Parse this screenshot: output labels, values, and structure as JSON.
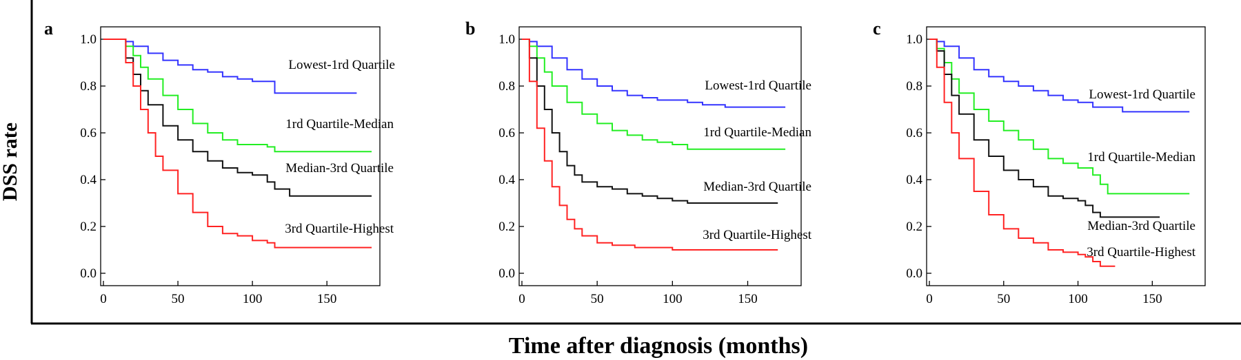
{
  "figure": {
    "ylabel": "DSS rate",
    "xlabel": "Time after diagnosis (months)"
  },
  "colors": {
    "Lowest-1rd Quartile": "#3333ff",
    "1rd Quartile-Median": "#22ee22",
    "Median-3rd Quartile": "#111111",
    "3rd Quartile-Highest": "#ff2222"
  },
  "chart_data": [
    {
      "type": "line",
      "panel": "a",
      "xlim": [
        0,
        180
      ],
      "ylim": [
        0,
        1.0
      ],
      "xticks": [
        "0",
        "50",
        "100",
        "150"
      ],
      "yticks": [
        "0.0",
        "0.2",
        "0.4",
        "0.6",
        "0.8",
        "1.0"
      ],
      "series": [
        {
          "name": "Lowest-1rd Quartile",
          "x": [
            0,
            10,
            15,
            20,
            30,
            40,
            50,
            60,
            70,
            80,
            90,
            100,
            110,
            115,
            120,
            170
          ],
          "y": [
            1.0,
            1.0,
            0.99,
            0.97,
            0.94,
            0.91,
            0.89,
            0.87,
            0.86,
            0.84,
            0.83,
            0.82,
            0.82,
            0.77,
            0.77,
            0.77
          ]
        },
        {
          "name": "1rd Quartile-Median",
          "x": [
            0,
            10,
            15,
            20,
            25,
            30,
            40,
            50,
            60,
            70,
            80,
            90,
            100,
            110,
            115,
            120,
            180
          ],
          "y": [
            1.0,
            1.0,
            0.97,
            0.93,
            0.88,
            0.83,
            0.76,
            0.7,
            0.64,
            0.6,
            0.57,
            0.55,
            0.55,
            0.54,
            0.52,
            0.52,
            0.52
          ]
        },
        {
          "name": "Median-3rd Quartile",
          "x": [
            0,
            10,
            15,
            20,
            25,
            30,
            40,
            50,
            60,
            70,
            80,
            90,
            100,
            110,
            115,
            125,
            180
          ],
          "y": [
            1.0,
            1.0,
            0.92,
            0.85,
            0.78,
            0.72,
            0.63,
            0.57,
            0.52,
            0.48,
            0.45,
            0.43,
            0.42,
            0.39,
            0.36,
            0.33,
            0.33
          ]
        },
        {
          "name": "3rd Quartile-Highest",
          "x": [
            0,
            10,
            15,
            20,
            25,
            30,
            35,
            40,
            50,
            60,
            70,
            80,
            90,
            100,
            110,
            115,
            180
          ],
          "y": [
            1.0,
            1.0,
            0.9,
            0.8,
            0.7,
            0.6,
            0.5,
            0.44,
            0.34,
            0.26,
            0.2,
            0.17,
            0.16,
            0.14,
            0.13,
            0.11,
            0.11
          ]
        }
      ]
    },
    {
      "type": "line",
      "panel": "b",
      "xlim": [
        0,
        180
      ],
      "ylim": [
        0,
        1.0
      ],
      "xticks": [
        "0",
        "50",
        "100",
        "150"
      ],
      "yticks": [
        "0.0",
        "0.2",
        "0.4",
        "0.6",
        "0.8",
        "1.0"
      ],
      "series": [
        {
          "name": "Lowest-1rd Quartile",
          "x": [
            0,
            5,
            10,
            20,
            30,
            40,
            50,
            60,
            70,
            80,
            90,
            100,
            110,
            120,
            130,
            135,
            175
          ],
          "y": [
            1.0,
            0.99,
            0.97,
            0.92,
            0.87,
            0.83,
            0.8,
            0.78,
            0.76,
            0.75,
            0.74,
            0.74,
            0.73,
            0.72,
            0.72,
            0.71,
            0.71
          ]
        },
        {
          "name": "1rd Quartile-Median",
          "x": [
            0,
            5,
            10,
            15,
            20,
            30,
            40,
            50,
            60,
            70,
            80,
            90,
            100,
            110,
            120,
            175
          ],
          "y": [
            1.0,
            0.97,
            0.92,
            0.86,
            0.8,
            0.73,
            0.68,
            0.64,
            0.61,
            0.59,
            0.57,
            0.56,
            0.55,
            0.53,
            0.53,
            0.53
          ]
        },
        {
          "name": "Median-3rd Quartile",
          "x": [
            0,
            5,
            10,
            15,
            20,
            25,
            30,
            35,
            40,
            50,
            60,
            70,
            80,
            90,
            100,
            110,
            170
          ],
          "y": [
            1.0,
            0.92,
            0.8,
            0.7,
            0.6,
            0.52,
            0.46,
            0.42,
            0.39,
            0.37,
            0.36,
            0.34,
            0.33,
            0.32,
            0.31,
            0.3,
            0.3
          ]
        },
        {
          "name": "3rd Quartile-Highest",
          "x": [
            0,
            5,
            10,
            15,
            20,
            25,
            30,
            35,
            40,
            50,
            60,
            70,
            75,
            80,
            90,
            100,
            170
          ],
          "y": [
            1.0,
            0.82,
            0.62,
            0.48,
            0.37,
            0.29,
            0.23,
            0.19,
            0.16,
            0.13,
            0.12,
            0.12,
            0.11,
            0.11,
            0.11,
            0.1,
            0.1
          ]
        }
      ]
    },
    {
      "type": "line",
      "panel": "c",
      "xlim": [
        0,
        180
      ],
      "ylim": [
        0,
        1.0
      ],
      "xticks": [
        "0",
        "50",
        "100",
        "150"
      ],
      "yticks": [
        "0.0",
        "0.2",
        "0.4",
        "0.6",
        "0.8",
        "1.0"
      ],
      "series": [
        {
          "name": "Lowest-1rd Quartile",
          "x": [
            0,
            5,
            10,
            20,
            30,
            40,
            50,
            60,
            70,
            80,
            90,
            100,
            110,
            120,
            130,
            175
          ],
          "y": [
            1.0,
            0.99,
            0.97,
            0.92,
            0.87,
            0.84,
            0.82,
            0.8,
            0.78,
            0.76,
            0.74,
            0.73,
            0.71,
            0.71,
            0.69,
            0.69
          ]
        },
        {
          "name": "1rd Quartile-Median",
          "x": [
            0,
            5,
            10,
            15,
            20,
            30,
            40,
            50,
            60,
            70,
            80,
            90,
            100,
            110,
            115,
            120,
            175
          ],
          "y": [
            1.0,
            0.96,
            0.9,
            0.83,
            0.77,
            0.7,
            0.65,
            0.61,
            0.57,
            0.53,
            0.49,
            0.47,
            0.45,
            0.42,
            0.38,
            0.34,
            0.34
          ]
        },
        {
          "name": "Median-3rd Quartile",
          "x": [
            0,
            5,
            10,
            15,
            20,
            30,
            40,
            50,
            60,
            70,
            80,
            90,
            100,
            105,
            110,
            115,
            155
          ],
          "y": [
            1.0,
            0.95,
            0.85,
            0.76,
            0.68,
            0.57,
            0.5,
            0.44,
            0.4,
            0.37,
            0.33,
            0.32,
            0.31,
            0.29,
            0.26,
            0.24,
            0.24
          ]
        },
        {
          "name": "3rd Quartile-Highest",
          "x": [
            0,
            5,
            10,
            15,
            20,
            30,
            40,
            50,
            60,
            70,
            80,
            90,
            100,
            105,
            110,
            115,
            125
          ],
          "y": [
            1.0,
            0.88,
            0.73,
            0.6,
            0.49,
            0.35,
            0.25,
            0.19,
            0.15,
            0.13,
            0.1,
            0.09,
            0.08,
            0.07,
            0.05,
            0.03,
            0.03
          ]
        }
      ]
    }
  ],
  "panels": [
    {
      "letter": "a",
      "labels": {
        "Lowest-1rd Quartile": "Lowest-1rd Quartile",
        "1rd Quartile-Median": "1rd Quartile-Median",
        "Median-3rd Quartile": "Median-3rd Quartile",
        "3rd Quartile-Highest": "3rd Quartile-Highest"
      }
    },
    {
      "letter": "b",
      "labels": {
        "Lowest-1rd Quartile": "Lowest-1rd Quartile",
        "1rd Quartile-Median": "1rd Quartile-Median",
        "Median-3rd Quartile": "Median-3rd Quartile",
        "3rd Quartile-Highest": "3rd Quartile-Highest"
      }
    },
    {
      "letter": "c",
      "labels": {
        "Lowest-1rd Quartile": "Lowest-1rd Quartile",
        "1rd Quartile-Median": "1rd Quartile-Median",
        "Median-3rd Quartile": "Median-3rd Quartile",
        "3rd Quartile-Highest": "3rd Quartile-Highest"
      }
    }
  ]
}
